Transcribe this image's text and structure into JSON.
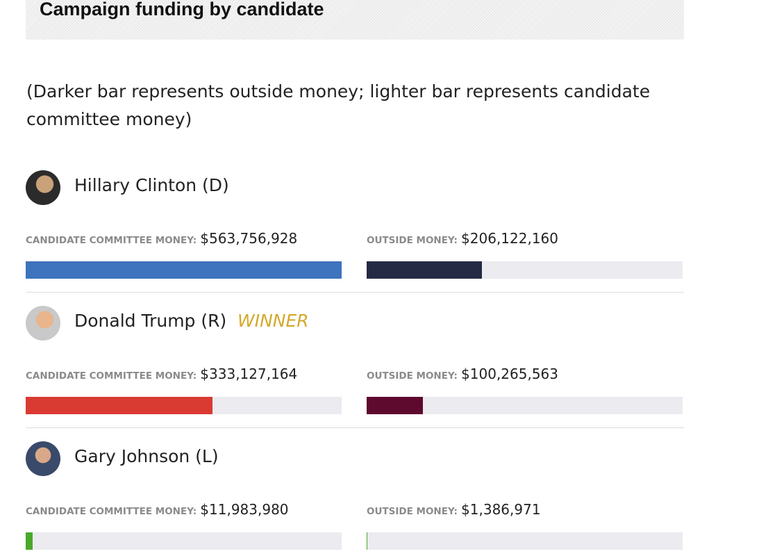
{
  "header": {
    "title": "Campaign funding by candidate"
  },
  "note": "(Darker bar represents outside money; lighter bar represents candidate committee money)",
  "labels": {
    "committee": "CANDIDATE COMMITTEE MONEY:",
    "outside": "OUTSIDE MONEY:"
  },
  "candidates": [
    {
      "name": "Hillary Clinton (D)",
      "committee_money": 563756928,
      "committee_label": "$563,756,928",
      "outside_money": 206122160,
      "outside_label": "$206,122,160",
      "committee_color": "#3e73bd",
      "outside_color": "#252a44"
    },
    {
      "name": "Donald Trump (R)",
      "badge": "WINNER",
      "committee_money": 333127164,
      "committee_label": "$333,127,164",
      "outside_money": 100265563,
      "outside_label": "$100,265,563",
      "committee_color": "#d93a32",
      "outside_color": "#5e0a2e"
    },
    {
      "name": "Gary Johnson (L)",
      "committee_money": 11983980,
      "committee_label": "$11,983,980",
      "outside_money": 1386971,
      "outside_label": "$1,386,971",
      "committee_color": "#4aa82a",
      "outside_color": "#4aa82a"
    }
  ]
}
